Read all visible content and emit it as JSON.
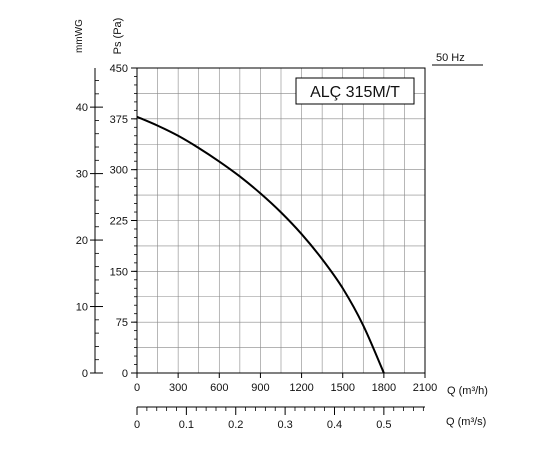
{
  "chart_data": {
    "type": "line",
    "title": "ALÇ 315M/T",
    "frequency_label": "50 Hz",
    "xlabel": "Q (m³/h)",
    "ylabel": "Ps (Pa)",
    "secondary_ylabel": "mmWG",
    "secondary_xlabel": "Q (m³/s)",
    "xlim": [
      0,
      2100
    ],
    "ylim": [
      0,
      450
    ],
    "x_ticks": [
      0,
      300,
      600,
      900,
      1200,
      1500,
      1800,
      2100
    ],
    "y_ticks": [
      0,
      75,
      150,
      225,
      300,
      375,
      450
    ],
    "mmwg_ticks": [
      0,
      10,
      20,
      30,
      40
    ],
    "m3s_ticks": [
      0,
      0.1,
      0.2,
      0.3,
      0.4,
      0.5
    ],
    "grid": true,
    "series": [
      {
        "x": [
          0,
          150,
          300,
          450,
          600,
          750,
          900,
          1050,
          1200,
          1350,
          1500,
          1650,
          1800
        ],
        "y": [
          378,
          365,
          350,
          332,
          312,
          290,
          265,
          237,
          205,
          168,
          125,
          70,
          0
        ],
        "color": "#000000"
      }
    ]
  }
}
